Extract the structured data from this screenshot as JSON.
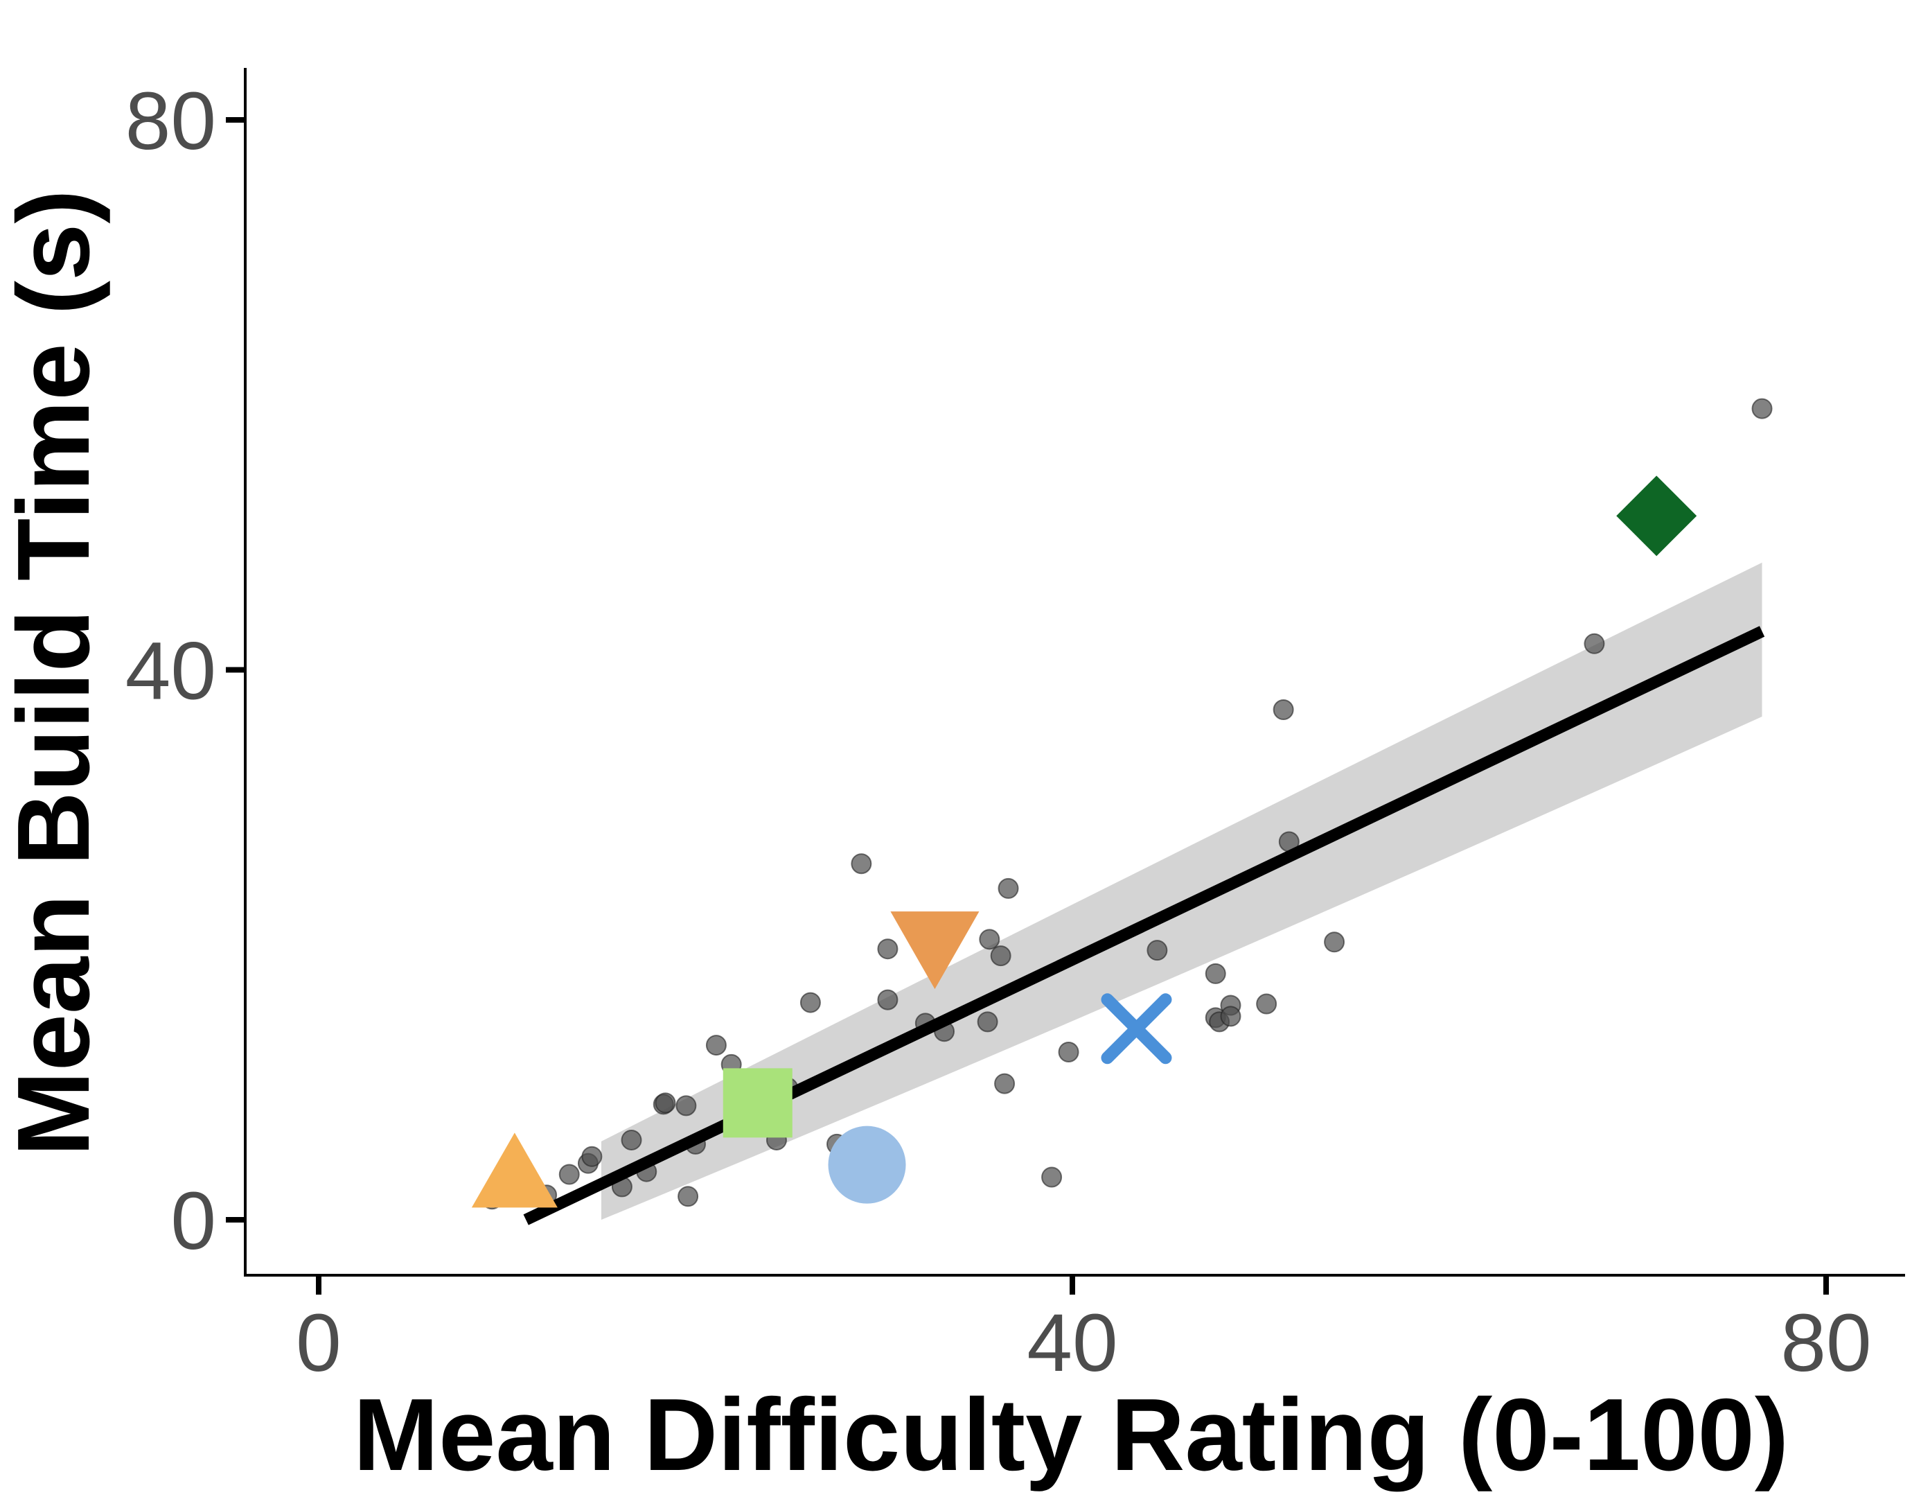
{
  "chart_data": {
    "type": "scatter",
    "xlabel": "Mean Difficulty Rating (0-100)",
    "ylabel": "Mean Build Time (s)",
    "xlim": [
      -4,
      84
    ],
    "ylim": [
      -4,
      84
    ],
    "x_ticks": [
      {
        "value": 0,
        "label": "0"
      },
      {
        "value": 40,
        "label": "40"
      },
      {
        "value": 80,
        "label": "80"
      }
    ],
    "y_ticks": [
      {
        "value": 0,
        "label": "0"
      },
      {
        "value": 40,
        "label": "40"
      },
      {
        "value": 80,
        "label": "80"
      }
    ],
    "grid": false,
    "legend": "none",
    "series": [
      {
        "marker": "circle",
        "color": "#4d4d4d",
        "opacity": 0.7,
        "points": [
          [
            9.2,
            1.5
          ],
          [
            12.1,
            1.8
          ],
          [
            13.3,
            3.3
          ],
          [
            14.3,
            4.1
          ],
          [
            14.5,
            4.6
          ],
          [
            16.1,
            2.4
          ],
          [
            16.6,
            5.8
          ],
          [
            17.4,
            3.5
          ],
          [
            18.3,
            8.4
          ],
          [
            18.4,
            8.5
          ],
          [
            19.5,
            8.3
          ],
          [
            19.6,
            1.7
          ],
          [
            20.0,
            5.5
          ],
          [
            21.1,
            12.7
          ],
          [
            21.9,
            11.3
          ],
          [
            24.3,
            5.8
          ],
          [
            24.9,
            9.6
          ],
          [
            26.1,
            15.8
          ],
          [
            27.5,
            5.5
          ],
          [
            28.8,
            25.9
          ],
          [
            30.2,
            19.7
          ],
          [
            30.2,
            16.0
          ],
          [
            32.2,
            14.3
          ],
          [
            33.2,
            13.7
          ],
          [
            35.5,
            14.4
          ],
          [
            35.6,
            20.4
          ],
          [
            36.2,
            19.2
          ],
          [
            36.6,
            24.1
          ],
          [
            36.4,
            9.9
          ],
          [
            38.9,
            3.1
          ],
          [
            39.8,
            12.2
          ],
          [
            44.5,
            19.6
          ],
          [
            47.6,
            17.9
          ],
          [
            47.6,
            14.7
          ],
          [
            47.8,
            14.4
          ],
          [
            48.4,
            15.6
          ],
          [
            48.4,
            14.8
          ],
          [
            50.3,
            15.7
          ],
          [
            51.2,
            37.1
          ],
          [
            51.5,
            27.5
          ],
          [
            53.9,
            20.2
          ],
          [
            67.7,
            41.9
          ],
          [
            76.6,
            59.0
          ]
        ]
      },
      {
        "marker": "triangle-up",
        "color": "#f5b054",
        "points": [
          [
            10.4,
            2.4
          ]
        ]
      },
      {
        "marker": "square",
        "color": "#a9e27a",
        "points": [
          [
            23.3,
            8.5
          ]
        ]
      },
      {
        "marker": "circle-large",
        "color": "#9bbfe6",
        "points": [
          [
            29.1,
            4.0
          ]
        ]
      },
      {
        "marker": "triangle-down",
        "color": "#e99a52",
        "points": [
          [
            32.7,
            19.5
          ]
        ]
      },
      {
        "marker": "x",
        "color": "#4a90d9",
        "points": [
          [
            43.4,
            13.9
          ]
        ]
      },
      {
        "marker": "diamond",
        "color": "#0e6625",
        "points": [
          [
            71.0,
            51.2
          ]
        ]
      }
    ],
    "trend_line": {
      "x": [
        11.0,
        76.6
      ],
      "y": [
        0.0,
        42.8
      ],
      "color": "#000000",
      "ci_lower": [
        [
          15.0,
          0.0
        ],
        [
          76.6,
          36.6
        ]
      ],
      "ci_upper": [
        [
          15.0,
          5.7
        ],
        [
          76.6,
          47.8
        ]
      ],
      "ci_color": "#d4d4d4"
    }
  }
}
